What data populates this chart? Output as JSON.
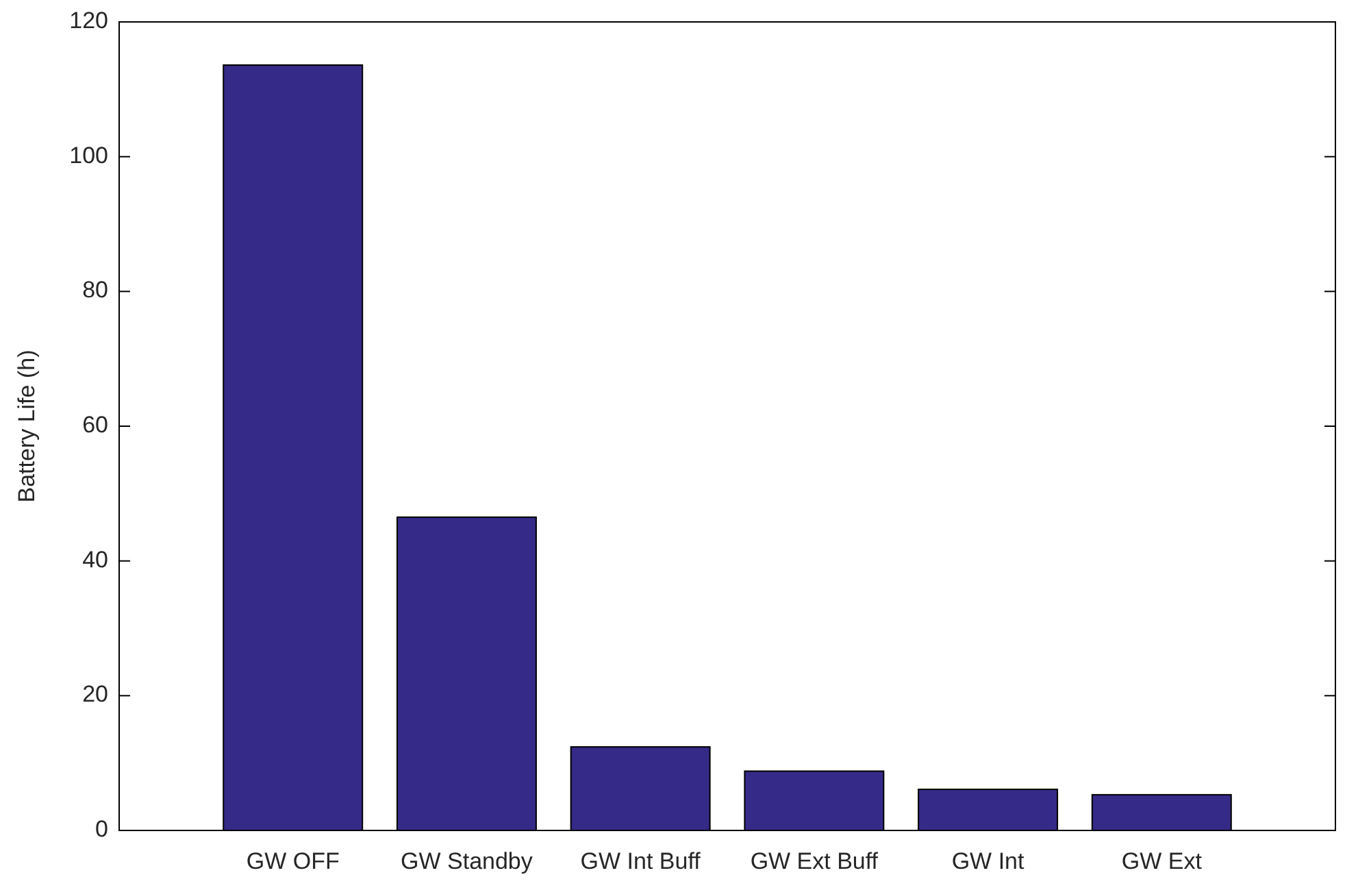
{
  "chart_data": {
    "type": "bar",
    "ylabel": "Battery Life (h)",
    "categories": [
      "GW OFF",
      "GW Standby",
      "GW Int Buff",
      "GW Ext Buff",
      "GW Int",
      "GW Ext"
    ],
    "values": [
      113.6,
      46.5,
      12.4,
      8.8,
      6.1,
      5.3
    ],
    "color": "#352a87",
    "ylim": [
      0,
      120
    ],
    "yticks": [
      0,
      20,
      40,
      60,
      80,
      100,
      120
    ],
    "grid": false
  }
}
